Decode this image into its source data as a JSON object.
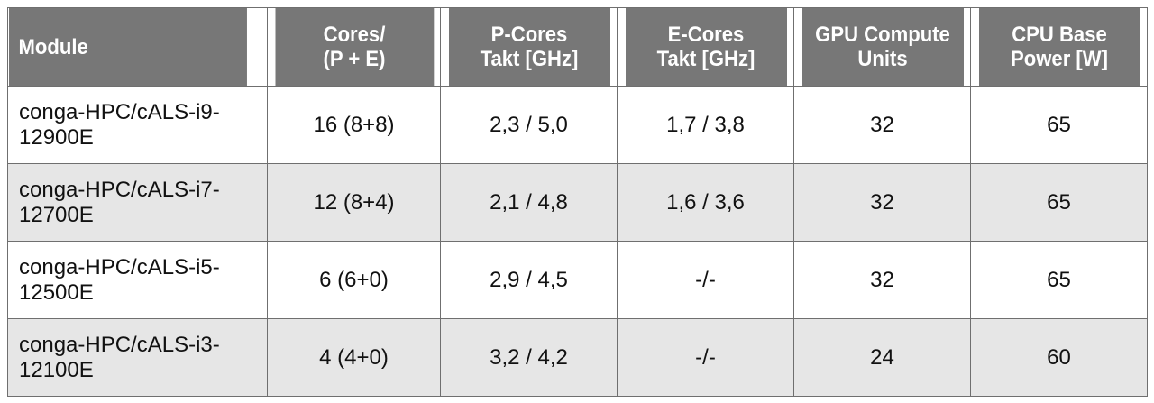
{
  "table": {
    "headers": [
      [
        "Module"
      ],
      [
        "Cores/",
        "(P + E)"
      ],
      [
        "P-Cores",
        "Takt [GHz]"
      ],
      [
        "E-Cores",
        "Takt [GHz]"
      ],
      [
        "GPU Compute",
        "Units"
      ],
      [
        "CPU Base",
        "Power [W]"
      ]
    ],
    "rows": [
      {
        "module": [
          "conga-HPC/cALS-i9-",
          "12900E"
        ],
        "cores": "16 (8+8)",
        "p_takt": "2,3 / 5,0",
        "e_takt": "1,7 / 3,8",
        "gpu_units": "32",
        "base_power": "65"
      },
      {
        "module": [
          "conga-HPC/cALS-i7-",
          "12700E"
        ],
        "cores": "12 (8+4)",
        "p_takt": "2,1 / 4,8",
        "e_takt": "1,6 / 3,6",
        "gpu_units": "32",
        "base_power": "65"
      },
      {
        "module": [
          "conga-HPC/cALS-i5-",
          "12500E"
        ],
        "cores": "6 (6+0)",
        "p_takt": "2,9 / 4,5",
        "e_takt": "-/-",
        "gpu_units": "32",
        "base_power": "65"
      },
      {
        "module": [
          "conga-HPC/cALS-i3-",
          "12100E"
        ],
        "cores": "4 (4+0)",
        "p_takt": "3,2 / 4,2",
        "e_takt": "-/-",
        "gpu_units": "24",
        "base_power": "60"
      }
    ]
  },
  "colors": {
    "header_bg": "#777777",
    "header_text": "#ffffff",
    "row_alt_bg": "#e6e6e6",
    "border": "#6f6f6f"
  }
}
